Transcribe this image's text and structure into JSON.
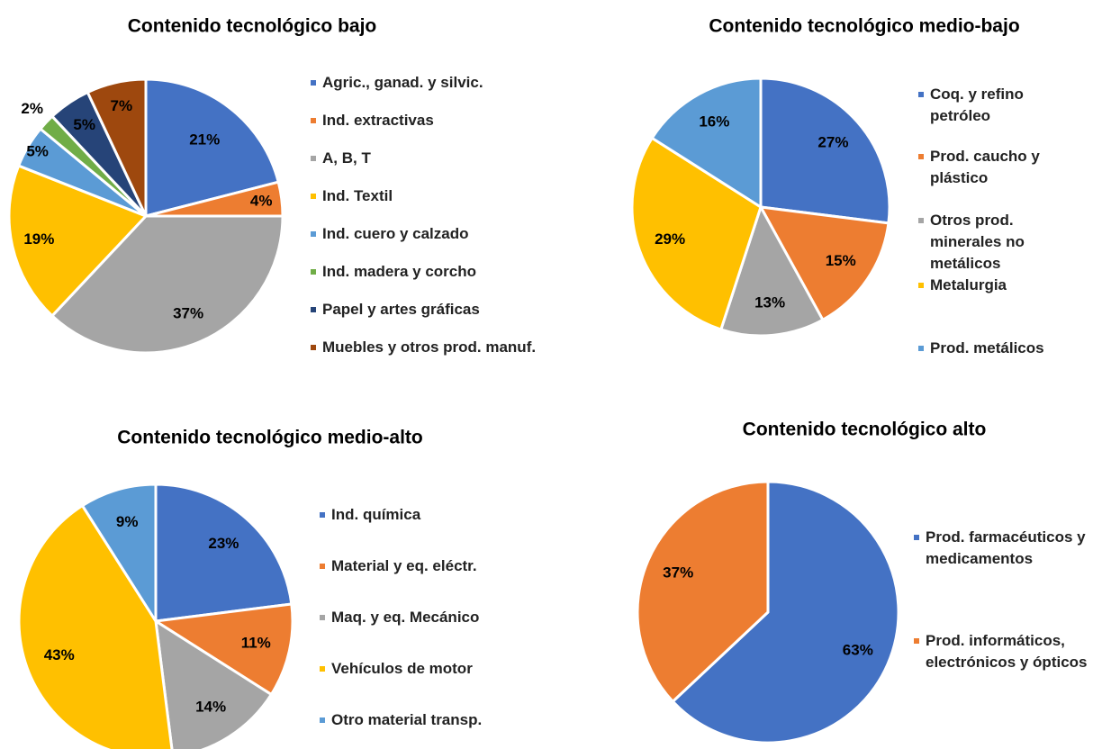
{
  "chart_data": [
    {
      "type": "pie",
      "title": "Contenido tecnológico bajo",
      "categories": [
        "Agric., ganad. y silvic.",
        "Ind. extractivas",
        "A, B, T",
        "Ind. Textil",
        "Ind. cuero y calzado",
        "Ind. madera y corcho",
        "Papel y artes gráficas",
        "Muebles y otros prod. manuf."
      ],
      "values": [
        21,
        4,
        37,
        19,
        5,
        2,
        5,
        7
      ],
      "value_labels": [
        "21%",
        "4%",
        "37%",
        "19%",
        "5%",
        "2%",
        "5%",
        "7%"
      ],
      "colors": [
        "#4472c4",
        "#ed7d31",
        "#a5a5a5",
        "#ffc000",
        "#5b9bd5",
        "#70ad47",
        "#264478",
        "#9e480e"
      ]
    },
    {
      "type": "pie",
      "title": "Contenido tecnológico medio-bajo",
      "categories": [
        "Coq. y refino petróleo",
        "Prod. caucho y plástico",
        "Otros prod. minerales no metálicos",
        "Metalurgia",
        "Prod. metálicos"
      ],
      "values": [
        27,
        15,
        13,
        29,
        16
      ],
      "value_labels": [
        "27%",
        "15%",
        "13%",
        "29%",
        "16%"
      ],
      "colors": [
        "#4472c4",
        "#ed7d31",
        "#a5a5a5",
        "#ffc000",
        "#5b9bd5"
      ]
    },
    {
      "type": "pie",
      "title": "Contenido tecnológico medio-alto",
      "categories": [
        "Ind. química",
        "Material y eq. eléctr.",
        "Maq. y eq. Mecánico",
        "Vehículos de motor",
        "Otro material transp."
      ],
      "values": [
        23,
        11,
        14,
        43,
        9
      ],
      "value_labels": [
        "23%",
        "11%",
        "14%",
        "43%",
        "9%"
      ],
      "colors": [
        "#4472c4",
        "#ed7d31",
        "#a5a5a5",
        "#ffc000",
        "#5b9bd5"
      ]
    },
    {
      "type": "pie",
      "title": "Contenido tecnológico alto",
      "categories": [
        "Prod. farmacéuticos y medicamentos",
        "Prod. informáticos, electrónicos y ópticos"
      ],
      "values": [
        63,
        37
      ],
      "value_labels": [
        "63%",
        "37%"
      ],
      "colors": [
        "#4472c4",
        "#ed7d31"
      ]
    }
  ]
}
